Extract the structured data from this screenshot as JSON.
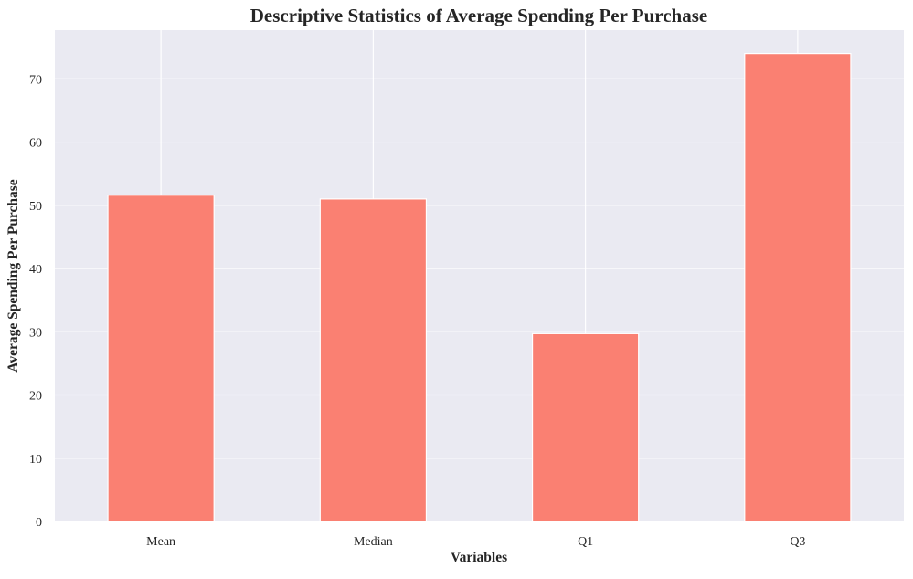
{
  "chart_data": {
    "type": "bar",
    "title": "Descriptive Statistics of Average Spending Per Purchase",
    "xlabel": "Variables",
    "ylabel": "Average Spending Per Purchase",
    "categories": [
      "Mean",
      "Median",
      "Q1",
      "Q3"
    ],
    "values": [
      51.6,
      51.0,
      29.7,
      74.0
    ],
    "ylim": [
      0,
      77.7
    ],
    "yticks": [
      "0",
      "10",
      "20",
      "30",
      "40",
      "50",
      "60",
      "70"
    ],
    "grid": true,
    "legend": "none",
    "colors": {
      "bar": "#FA8072",
      "plot_background": "#EAEAF2",
      "grid": "#FFFFFF",
      "text": "#262626"
    }
  }
}
